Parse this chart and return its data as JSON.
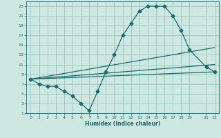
{
  "xlabel": "Humidex (Indice chaleur)",
  "bg_color": "#cce8e0",
  "grid_color": "#a0ccc4",
  "line_color": "#1a6b6b",
  "xlim": [
    -0.5,
    22.5
  ],
  "ylim": [
    1,
    24
  ],
  "xticks": [
    0,
    1,
    2,
    3,
    4,
    5,
    6,
    7,
    8,
    9,
    10,
    11,
    12,
    13,
    14,
    15,
    16,
    17,
    18,
    19,
    21,
    22
  ],
  "yticks": [
    1,
    3,
    5,
    7,
    9,
    11,
    13,
    15,
    17,
    19,
    21,
    23
  ],
  "lines": [
    {
      "x": [
        0,
        1,
        2,
        3,
        4,
        5,
        6,
        7,
        8,
        9,
        10,
        11,
        12,
        13,
        14,
        15,
        16,
        17,
        18,
        19,
        21,
        22
      ],
      "y": [
        8,
        7,
        6.5,
        6.5,
        5.5,
        4.5,
        3,
        1.5,
        5.5,
        9.5,
        13,
        17,
        19.5,
        22,
        23,
        23,
        23,
        21,
        18,
        14,
        10.5,
        9.5
      ],
      "marker": "D",
      "markersize": 2.5
    },
    {
      "x": [
        0,
        22
      ],
      "y": [
        8,
        9.5
      ],
      "marker": null,
      "markersize": 0
    },
    {
      "x": [
        0,
        22
      ],
      "y": [
        8,
        11
      ],
      "marker": null,
      "markersize": 0
    },
    {
      "x": [
        0,
        22
      ],
      "y": [
        8,
        14.5
      ],
      "marker": null,
      "markersize": 0
    }
  ]
}
